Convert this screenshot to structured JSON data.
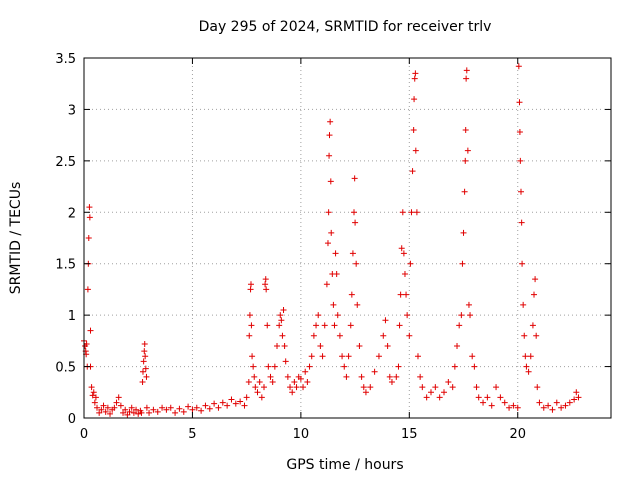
{
  "chart_data": {
    "type": "scatter",
    "title": "Day 295 of 2024, SRMTID for receiver trlv",
    "xlabel": "GPS time / hours",
    "ylabel": "SRMTID / TECUs",
    "xlim": [
      0,
      24.3
    ],
    "ylim": [
      0,
      3.5
    ],
    "xticks": [
      0,
      5,
      10,
      15,
      20
    ],
    "yticks": [
      0,
      0.5,
      1,
      1.5,
      2,
      2.5,
      3,
      3.5
    ],
    "xtick_labels": [
      "0",
      "5",
      "10",
      "15",
      "20"
    ],
    "ytick_labels": [
      "0",
      "0.5",
      "1",
      "1.5",
      "2",
      "2.5",
      "3",
      "3.5"
    ],
    "grid": true,
    "marker": "+",
    "color": "#e00000",
    "series": [
      {
        "name": "trlv",
        "points": [
          [
            0.0,
            0.75
          ],
          [
            0.05,
            0.7
          ],
          [
            0.08,
            0.65
          ],
          [
            0.1,
            0.62
          ],
          [
            0.12,
            0.72
          ],
          [
            0.15,
            0.5
          ],
          [
            0.18,
            1.25
          ],
          [
            0.2,
            1.5
          ],
          [
            0.22,
            1.75
          ],
          [
            0.25,
            2.05
          ],
          [
            0.27,
            1.95
          ],
          [
            0.3,
            0.85
          ],
          [
            0.3,
            0.5
          ],
          [
            0.35,
            0.3
          ],
          [
            0.4,
            0.22
          ],
          [
            0.45,
            0.25
          ],
          [
            0.5,
            0.15
          ],
          [
            0.55,
            0.2
          ],
          [
            0.6,
            0.1
          ],
          [
            0.7,
            0.05
          ],
          [
            0.8,
            0.08
          ],
          [
            0.9,
            0.12
          ],
          [
            1.0,
            0.06
          ],
          [
            1.1,
            0.1
          ],
          [
            1.2,
            0.04
          ],
          [
            1.3,
            0.08
          ],
          [
            1.4,
            0.1
          ],
          [
            1.5,
            0.15
          ],
          [
            1.6,
            0.2
          ],
          [
            1.7,
            0.12
          ],
          [
            1.8,
            0.05
          ],
          [
            1.9,
            0.08
          ],
          [
            2.0,
            0.03
          ],
          [
            2.1,
            0.06
          ],
          [
            2.2,
            0.1
          ],
          [
            2.3,
            0.05
          ],
          [
            2.4,
            0.08
          ],
          [
            2.5,
            0.04
          ],
          [
            2.6,
            0.07
          ],
          [
            2.65,
            0.05
          ],
          [
            2.7,
            0.35
          ],
          [
            2.72,
            0.45
          ],
          [
            2.75,
            0.55
          ],
          [
            2.78,
            0.65
          ],
          [
            2.8,
            0.72
          ],
          [
            2.82,
            0.6
          ],
          [
            2.85,
            0.48
          ],
          [
            2.88,
            0.4
          ],
          [
            2.9,
            0.1
          ],
          [
            3.0,
            0.05
          ],
          [
            3.2,
            0.08
          ],
          [
            3.4,
            0.06
          ],
          [
            3.6,
            0.1
          ],
          [
            3.8,
            0.08
          ],
          [
            4.0,
            0.1
          ],
          [
            4.2,
            0.05
          ],
          [
            4.4,
            0.09
          ],
          [
            4.6,
            0.06
          ],
          [
            4.8,
            0.11
          ],
          [
            5.0,
            0.08
          ],
          [
            5.2,
            0.1
          ],
          [
            5.4,
            0.07
          ],
          [
            5.6,
            0.12
          ],
          [
            5.8,
            0.09
          ],
          [
            6.0,
            0.14
          ],
          [
            6.2,
            0.1
          ],
          [
            6.4,
            0.15
          ],
          [
            6.6,
            0.12
          ],
          [
            6.8,
            0.18
          ],
          [
            7.0,
            0.14
          ],
          [
            7.2,
            0.16
          ],
          [
            7.4,
            0.12
          ],
          [
            7.5,
            0.2
          ],
          [
            7.6,
            0.35
          ],
          [
            7.62,
            0.8
          ],
          [
            7.65,
            1.0
          ],
          [
            7.68,
            1.25
          ],
          [
            7.7,
            1.3
          ],
          [
            7.72,
            0.9
          ],
          [
            7.75,
            0.6
          ],
          [
            7.8,
            0.5
          ],
          [
            7.85,
            0.4
          ],
          [
            7.9,
            0.3
          ],
          [
            8.0,
            0.25
          ],
          [
            8.1,
            0.35
          ],
          [
            8.2,
            0.2
          ],
          [
            8.3,
            0.3
          ],
          [
            8.35,
            1.3
          ],
          [
            8.38,
            1.35
          ],
          [
            8.4,
            1.25
          ],
          [
            8.45,
            0.9
          ],
          [
            8.5,
            0.5
          ],
          [
            8.6,
            0.4
          ],
          [
            8.7,
            0.35
          ],
          [
            8.8,
            0.5
          ],
          [
            8.9,
            0.7
          ],
          [
            9.0,
            0.9
          ],
          [
            9.05,
            1.0
          ],
          [
            9.1,
            0.95
          ],
          [
            9.15,
            0.8
          ],
          [
            9.2,
            1.05
          ],
          [
            9.25,
            0.7
          ],
          [
            9.3,
            0.55
          ],
          [
            9.4,
            0.4
          ],
          [
            9.5,
            0.3
          ],
          [
            9.6,
            0.25
          ],
          [
            9.7,
            0.35
          ],
          [
            9.8,
            0.3
          ],
          [
            9.9,
            0.4
          ],
          [
            10.0,
            0.38
          ],
          [
            10.1,
            0.3
          ],
          [
            10.2,
            0.45
          ],
          [
            10.3,
            0.35
          ],
          [
            10.4,
            0.5
          ],
          [
            10.5,
            0.6
          ],
          [
            10.6,
            0.8
          ],
          [
            10.7,
            0.9
          ],
          [
            10.8,
            1.0
          ],
          [
            10.9,
            0.7
          ],
          [
            11.0,
            0.6
          ],
          [
            11.1,
            0.9
          ],
          [
            11.2,
            1.3
          ],
          [
            11.25,
            1.7
          ],
          [
            11.28,
            2.0
          ],
          [
            11.3,
            2.55
          ],
          [
            11.32,
            2.75
          ],
          [
            11.35,
            2.88
          ],
          [
            11.38,
            2.3
          ],
          [
            11.4,
            1.8
          ],
          [
            11.45,
            1.4
          ],
          [
            11.5,
            1.1
          ],
          [
            11.55,
            0.9
          ],
          [
            11.6,
            1.6
          ],
          [
            11.65,
            1.4
          ],
          [
            11.7,
            1.0
          ],
          [
            11.8,
            0.8
          ],
          [
            11.9,
            0.6
          ],
          [
            12.0,
            0.5
          ],
          [
            12.1,
            0.4
          ],
          [
            12.2,
            0.6
          ],
          [
            12.3,
            0.9
          ],
          [
            12.35,
            1.2
          ],
          [
            12.4,
            1.6
          ],
          [
            12.45,
            2.0
          ],
          [
            12.48,
            2.33
          ],
          [
            12.5,
            1.9
          ],
          [
            12.55,
            1.5
          ],
          [
            12.6,
            1.1
          ],
          [
            12.7,
            0.7
          ],
          [
            12.8,
            0.4
          ],
          [
            12.9,
            0.3
          ],
          [
            13.0,
            0.25
          ],
          [
            13.2,
            0.3
          ],
          [
            13.4,
            0.45
          ],
          [
            13.6,
            0.6
          ],
          [
            13.8,
            0.8
          ],
          [
            13.9,
            0.95
          ],
          [
            14.0,
            0.7
          ],
          [
            14.1,
            0.4
          ],
          [
            14.2,
            0.35
          ],
          [
            14.4,
            0.4
          ],
          [
            14.5,
            0.5
          ],
          [
            14.55,
            0.9
          ],
          [
            14.6,
            1.2
          ],
          [
            14.65,
            1.65
          ],
          [
            14.7,
            2.0
          ],
          [
            14.75,
            1.6
          ],
          [
            14.8,
            1.4
          ],
          [
            14.85,
            1.2
          ],
          [
            14.9,
            1.0
          ],
          [
            15.0,
            0.8
          ],
          [
            15.05,
            1.5
          ],
          [
            15.1,
            2.0
          ],
          [
            15.15,
            2.4
          ],
          [
            15.2,
            2.8
          ],
          [
            15.22,
            3.1
          ],
          [
            15.25,
            3.3
          ],
          [
            15.28,
            3.35
          ],
          [
            15.3,
            2.6
          ],
          [
            15.35,
            2.0
          ],
          [
            15.4,
            0.6
          ],
          [
            15.5,
            0.4
          ],
          [
            15.6,
            0.3
          ],
          [
            15.8,
            0.2
          ],
          [
            16.0,
            0.25
          ],
          [
            16.2,
            0.3
          ],
          [
            16.4,
            0.2
          ],
          [
            16.6,
            0.25
          ],
          [
            16.8,
            0.35
          ],
          [
            17.0,
            0.3
          ],
          [
            17.1,
            0.5
          ],
          [
            17.2,
            0.7
          ],
          [
            17.3,
            0.9
          ],
          [
            17.4,
            1.0
          ],
          [
            17.45,
            1.5
          ],
          [
            17.5,
            1.8
          ],
          [
            17.55,
            2.2
          ],
          [
            17.58,
            2.5
          ],
          [
            17.6,
            2.8
          ],
          [
            17.62,
            3.3
          ],
          [
            17.65,
            3.38
          ],
          [
            17.7,
            2.6
          ],
          [
            17.75,
            1.1
          ],
          [
            17.8,
            1.0
          ],
          [
            17.9,
            0.6
          ],
          [
            18.0,
            0.5
          ],
          [
            18.1,
            0.3
          ],
          [
            18.2,
            0.2
          ],
          [
            18.4,
            0.15
          ],
          [
            18.6,
            0.2
          ],
          [
            18.8,
            0.12
          ],
          [
            19.0,
            0.3
          ],
          [
            19.2,
            0.2
          ],
          [
            19.4,
            0.15
          ],
          [
            19.6,
            0.1
          ],
          [
            19.8,
            0.12
          ],
          [
            20.0,
            0.1
          ],
          [
            20.05,
            3.42
          ],
          [
            20.08,
            3.07
          ],
          [
            20.1,
            2.78
          ],
          [
            20.12,
            2.5
          ],
          [
            20.15,
            2.2
          ],
          [
            20.18,
            1.9
          ],
          [
            20.2,
            1.5
          ],
          [
            20.25,
            1.1
          ],
          [
            20.3,
            0.8
          ],
          [
            20.35,
            0.6
          ],
          [
            20.4,
            0.5
          ],
          [
            20.5,
            0.45
          ],
          [
            20.6,
            0.6
          ],
          [
            20.7,
            0.9
          ],
          [
            20.75,
            1.2
          ],
          [
            20.8,
            1.35
          ],
          [
            20.85,
            0.8
          ],
          [
            20.9,
            0.3
          ],
          [
            21.0,
            0.15
          ],
          [
            21.2,
            0.1
          ],
          [
            21.4,
            0.12
          ],
          [
            21.6,
            0.08
          ],
          [
            21.8,
            0.15
          ],
          [
            22.0,
            0.1
          ],
          [
            22.2,
            0.12
          ],
          [
            22.4,
            0.15
          ],
          [
            22.6,
            0.18
          ],
          [
            22.7,
            0.25
          ],
          [
            22.8,
            0.2
          ]
        ]
      }
    ]
  }
}
